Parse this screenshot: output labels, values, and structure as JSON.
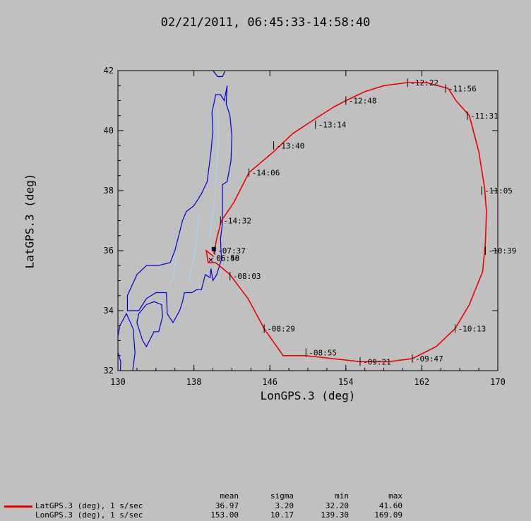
{
  "title": "02/21/2011, 06:45:33-14:58:40",
  "colors": {
    "track": "#ee0000",
    "coast": "#0000cc",
    "rivers": "#a8d8ff"
  },
  "chart_data": {
    "type": "line",
    "xlabel": "LonGPS.3 (deg)",
    "ylabel": "LatGPS.3 (deg)",
    "xlim": [
      130,
      170
    ],
    "ylim": [
      32,
      42
    ],
    "xticks": [
      "130",
      "138",
      "146",
      "154",
      "162",
      "170"
    ],
    "yticks": [
      "32",
      "34",
      "36",
      "38",
      "40",
      "42"
    ],
    "series": [
      {
        "name": "LatGPS.3 (deg), 1 s/sec",
        "points": [
          [
            140.1,
            35.8
          ],
          [
            139.3,
            36.0
          ],
          [
            139.5,
            35.6
          ],
          [
            140.3,
            35.6
          ],
          [
            141.8,
            35.2
          ],
          [
            143.7,
            34.4
          ],
          [
            145.4,
            33.4
          ],
          [
            147.4,
            32.5
          ],
          [
            149.8,
            32.5
          ],
          [
            152.6,
            32.4
          ],
          [
            155.5,
            32.3
          ],
          [
            158.5,
            32.3
          ],
          [
            161.0,
            32.4
          ],
          [
            163.5,
            32.8
          ],
          [
            165.5,
            33.4
          ],
          [
            167.0,
            34.2
          ],
          [
            168.4,
            35.3
          ],
          [
            168.7,
            36.3
          ],
          [
            168.8,
            37.3
          ],
          [
            168.6,
            38.1
          ],
          [
            168.0,
            39.3
          ],
          [
            167.0,
            40.5
          ],
          [
            165.6,
            41.0
          ],
          [
            164.8,
            41.4
          ],
          [
            162.5,
            41.6
          ],
          [
            160.5,
            41.6
          ],
          [
            158.0,
            41.5
          ],
          [
            156.0,
            41.3
          ],
          [
            154.0,
            41.0
          ],
          [
            152.8,
            40.8
          ],
          [
            150.8,
            40.4
          ],
          [
            148.4,
            39.9
          ],
          [
            146.4,
            39.3
          ],
          [
            143.8,
            38.6
          ],
          [
            142.2,
            37.6
          ],
          [
            140.9,
            37.0
          ],
          [
            140.4,
            36.4
          ],
          [
            140.1,
            35.9
          ]
        ]
      }
    ],
    "time_labels": [
      {
        "t": "07:37",
        "x": 140.2,
        "y": 36.0
      },
      {
        "t": "08:03",
        "x": 141.8,
        "y": 35.15
      },
      {
        "t": "08:29",
        "x": 145.4,
        "y": 33.4
      },
      {
        "t": "08:55",
        "x": 149.8,
        "y": 32.6
      },
      {
        "t": "09:21",
        "x": 155.5,
        "y": 32.3
      },
      {
        "t": "09:47",
        "x": 161.0,
        "y": 32.4
      },
      {
        "t": "10:13",
        "x": 165.5,
        "y": 33.4
      },
      {
        "t": "10:39",
        "x": 168.7,
        "y": 36.0
      },
      {
        "t": "11:05",
        "x": 168.3,
        "y": 38.0
      },
      {
        "t": "11:31",
        "x": 166.8,
        "y": 40.5
      },
      {
        "t": "11:56",
        "x": 164.5,
        "y": 41.4
      },
      {
        "t": "12:22",
        "x": 160.5,
        "y": 41.6
      },
      {
        "t": "12:48",
        "x": 154.0,
        "y": 41.0
      },
      {
        "t": "13:14",
        "x": 150.8,
        "y": 40.2
      },
      {
        "t": "13:40",
        "x": 146.4,
        "y": 39.5
      },
      {
        "t": "14:06",
        "x": 143.8,
        "y": 38.6
      },
      {
        "t": "14:32",
        "x": 140.8,
        "y": 37.0
      }
    ],
    "start_labels": [
      "06:50",
      "06:48"
    ],
    "stats_header": [
      "mean",
      "sigma",
      "min",
      "max"
    ],
    "stats": [
      {
        "name": "LatGPS.3 (deg), 1 s/sec",
        "mean": "36.97",
        "sigma": "3.20",
        "min": "32.20",
        "max": "41.60"
      },
      {
        "name": "LonGPS.3 (deg), 1 s/sec",
        "mean": "153.00",
        "sigma": "10.17",
        "min": "139.30",
        "max": "169.09"
      }
    ]
  }
}
